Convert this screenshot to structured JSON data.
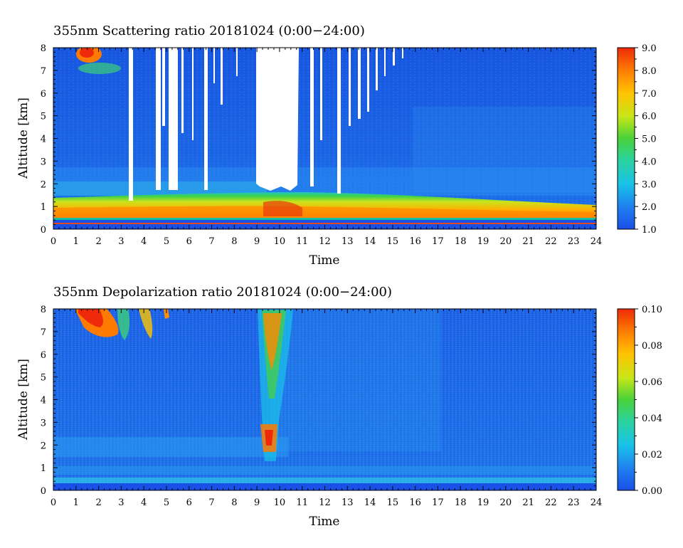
{
  "chart_data": [
    {
      "type": "heatmap",
      "title": "355nm Scattering ratio  20181024 (0:00−24:00)",
      "xlabel": "Time",
      "ylabel": "Altitude [km]",
      "xlim": [
        0,
        24
      ],
      "ylim": [
        0,
        8
      ],
      "x_ticks": [
        "0",
        "1",
        "2",
        "3",
        "4",
        "5",
        "6",
        "7",
        "8",
        "9",
        "10",
        "11",
        "12",
        "13",
        "14",
        "15",
        "16",
        "17",
        "18",
        "19",
        "20",
        "21",
        "22",
        "23",
        "24"
      ],
      "y_ticks": [
        "0",
        "1",
        "2",
        "3",
        "4",
        "5",
        "6",
        "7",
        "8"
      ],
      "colorbar": {
        "min": 1.0,
        "max": 9.0,
        "ticks": [
          "1.0",
          "2.0",
          "3.0",
          "4.0",
          "5.0",
          "6.0",
          "7.0",
          "8.0",
          "9.0"
        ]
      },
      "description_values": {
        "boundary_layer_top_km": 1.5,
        "surface_layer_peak_value": 7.5,
        "background_value": 2.0,
        "cirrus_high_value_time_h": [
          0.9,
          1.9
        ],
        "cirrus_altitude_km": [
          7.0,
          8.0
        ]
      },
      "masked_regions_h": [
        {
          "x": [
            3.4,
            3.6
          ],
          "y": [
            1.5,
            8
          ]
        },
        {
          "x": [
            4.6,
            4.8
          ],
          "y": [
            1.7,
            8
          ]
        },
        {
          "x": [
            5.1,
            5.5
          ],
          "y": [
            1.7,
            8
          ]
        },
        {
          "x": [
            6.7,
            6.9
          ],
          "y": [
            1.7,
            8
          ]
        },
        {
          "x": [
            9.0,
            10.6
          ],
          "y": [
            1.8,
            8
          ]
        },
        {
          "x": [
            11.2,
            11.4
          ],
          "y": [
            1.7,
            8
          ]
        },
        {
          "x": [
            12.6,
            12.8
          ],
          "y": [
            1.6,
            8
          ]
        }
      ]
    },
    {
      "type": "heatmap",
      "title": "355nm Depolarization ratio  20181024 (0:00−24:00)",
      "xlabel": "Time",
      "ylabel": "Altitude [km]",
      "xlim": [
        0,
        24
      ],
      "ylim": [
        0,
        8
      ],
      "x_ticks": [
        "0",
        "1",
        "2",
        "3",
        "4",
        "5",
        "6",
        "7",
        "8",
        "9",
        "10",
        "11",
        "12",
        "13",
        "14",
        "15",
        "16",
        "17",
        "18",
        "19",
        "20",
        "21",
        "22",
        "23",
        "24"
      ],
      "y_ticks": [
        "0",
        "1",
        "2",
        "3",
        "4",
        "5",
        "6",
        "7",
        "8"
      ],
      "colorbar": {
        "min": 0.0,
        "max": 0.1,
        "ticks": [
          "0.00",
          "0.02",
          "0.04",
          "0.06",
          "0.08",
          "0.10"
        ]
      },
      "description_values": {
        "background_value": 0.01,
        "cirrus_depol_value": 0.09,
        "cirrus_time_h": [
          1.0,
          4.8
        ],
        "cloud_column_time_h": [
          9.1,
          10.0
        ],
        "cloud_column_altitude_km": [
          1.5,
          8.0
        ]
      }
    }
  ]
}
